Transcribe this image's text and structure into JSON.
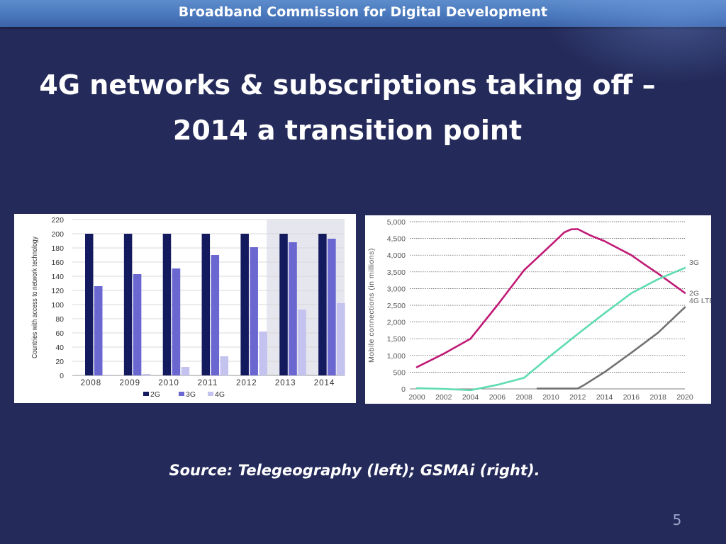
{
  "header": {
    "banner": "Broadband Commission for Digital Development",
    "title_line1": "4G networks & subscriptions taking off –",
    "title_line2": "2014 a transition point"
  },
  "footer": {
    "source": "Source: Telegeography (left); GSMAi (right).",
    "page_number": "5"
  },
  "colors": {
    "background": "#242a5a",
    "series_2G_bar": "#141a5e",
    "series_3G_bar": "#6a68d0",
    "series_4G_bar": "#c4c2ee",
    "line_2G": "#c01a76",
    "line_3G": "#5fdcb0",
    "line_4G": "#727272"
  },
  "chart_data": [
    {
      "type": "bar",
      "title": "",
      "xlabel": "",
      "ylabel": "Countries with access to network technology",
      "ylim": [
        0,
        220
      ],
      "yticks": [
        0,
        20,
        40,
        60,
        80,
        100,
        120,
        140,
        160,
        180,
        200,
        220
      ],
      "categories": [
        "2008",
        "2009",
        "2010",
        "2011",
        "2012",
        "2013",
        "2014"
      ],
      "series": [
        {
          "name": "2G",
          "values": [
            200,
            200,
            200,
            200,
            200,
            200,
            200
          ]
        },
        {
          "name": "3G",
          "values": [
            126,
            143,
            151,
            170,
            181,
            188,
            193
          ]
        },
        {
          "name": "4G",
          "values": [
            1,
            2,
            12,
            27,
            62,
            93,
            102
          ]
        }
      ],
      "legend": "bottom",
      "grid": true,
      "highlight_category": "2013"
    },
    {
      "type": "line",
      "title": "",
      "xlabel": "",
      "ylabel": "Mobile connections (in millions)",
      "ylim": [
        0,
        5000
      ],
      "yticks": [
        "0",
        "500",
        "1,000",
        "1,500",
        "2,000",
        "2,500",
        "3,000",
        "3,500",
        "4,000",
        "4,500",
        "5,000"
      ],
      "xlim": [
        2000,
        2020
      ],
      "xticks": [
        "2000",
        "2002",
        "2004",
        "2006",
        "2008",
        "2010",
        "2012",
        "2014",
        "2016",
        "2018",
        "2020"
      ],
      "series": [
        {
          "name": "2G",
          "x": [
            2000,
            2002,
            2004,
            2006,
            2008,
            2010,
            2011,
            2011.5,
            2012,
            2013,
            2014,
            2016,
            2017,
            2018,
            2020
          ],
          "y": [
            650,
            1050,
            1500,
            2500,
            3550,
            4300,
            4680,
            4770,
            4780,
            4580,
            4420,
            4000,
            3720,
            3450,
            2870
          ]
        },
        {
          "name": "3G",
          "x": [
            2000,
            2002,
            2004,
            2006,
            2008,
            2010,
            2012,
            2014,
            2016,
            2018,
            2020
          ],
          "y": [
            20,
            0,
            -40,
            120,
            330,
            1000,
            1640,
            2260,
            2860,
            3280,
            3620
          ]
        },
        {
          "name": "4G LTE",
          "x": [
            2009,
            2011,
            2012,
            2012.5,
            2014,
            2016,
            2018,
            2020
          ],
          "y": [
            10,
            10,
            10,
            120,
            500,
            1080,
            1680,
            2440
          ]
        }
      ],
      "legend": "right, inline labels",
      "grid": true
    }
  ]
}
